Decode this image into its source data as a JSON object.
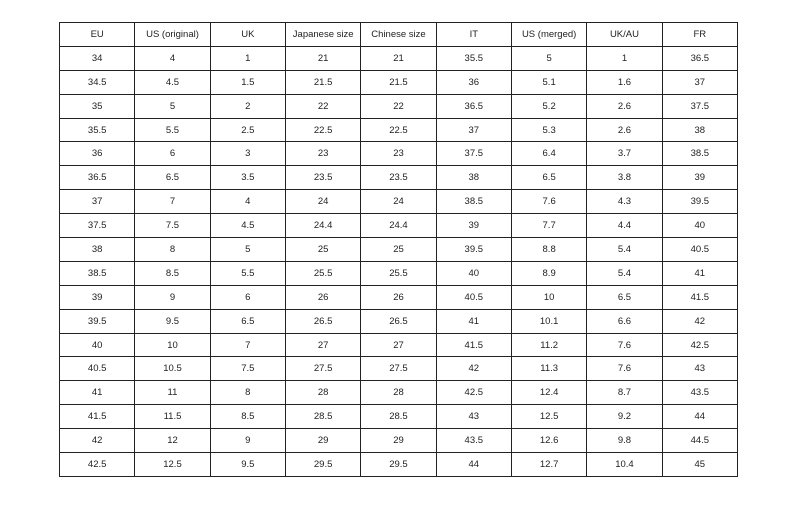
{
  "table": {
    "headers": [
      "EU",
      "US (original)",
      "UK",
      "Japanese size",
      "Chinese size",
      "IT",
      "US (merged)",
      "UK/AU",
      "FR"
    ],
    "rows": [
      [
        "34",
        "4",
        "1",
        "21",
        "21",
        "35.5",
        "5",
        "1",
        "36.5"
      ],
      [
        "34.5",
        "4.5",
        "1.5",
        "21.5",
        "21.5",
        "36",
        "5.1",
        "1.6",
        "37"
      ],
      [
        "35",
        "5",
        "2",
        "22",
        "22",
        "36.5",
        "5.2",
        "2.6",
        "37.5"
      ],
      [
        "35.5",
        "5.5",
        "2.5",
        "22.5",
        "22.5",
        "37",
        "5.3",
        "2.6",
        "38"
      ],
      [
        "36",
        "6",
        "3",
        "23",
        "23",
        "37.5",
        "6.4",
        "3.7",
        "38.5"
      ],
      [
        "36.5",
        "6.5",
        "3.5",
        "23.5",
        "23.5",
        "38",
        "6.5",
        "3.8",
        "39"
      ],
      [
        "37",
        "7",
        "4",
        "24",
        "24",
        "38.5",
        "7.6",
        "4.3",
        "39.5"
      ],
      [
        "37.5",
        "7.5",
        "4.5",
        "24.4",
        "24.4",
        "39",
        "7.7",
        "4.4",
        "40"
      ],
      [
        "38",
        "8",
        "5",
        "25",
        "25",
        "39.5",
        "8.8",
        "5.4",
        "40.5"
      ],
      [
        "38.5",
        "8.5",
        "5.5",
        "25.5",
        "25.5",
        "40",
        "8.9",
        "5.4",
        "41"
      ],
      [
        "39",
        "9",
        "6",
        "26",
        "26",
        "40.5",
        "10",
        "6.5",
        "41.5"
      ],
      [
        "39.5",
        "9.5",
        "6.5",
        "26.5",
        "26.5",
        "41",
        "10.1",
        "6.6",
        "42"
      ],
      [
        "40",
        "10",
        "7",
        "27",
        "27",
        "41.5",
        "11.2",
        "7.6",
        "42.5"
      ],
      [
        "40.5",
        "10.5",
        "7.5",
        "27.5",
        "27.5",
        "42",
        "11.3",
        "7.6",
        "43"
      ],
      [
        "41",
        "11",
        "8",
        "28",
        "28",
        "42.5",
        "12.4",
        "8.7",
        "43.5"
      ],
      [
        "41.5",
        "11.5",
        "8.5",
        "28.5",
        "28.5",
        "43",
        "12.5",
        "9.2",
        "44"
      ],
      [
        "42",
        "12",
        "9",
        "29",
        "29",
        "43.5",
        "12.6",
        "9.8",
        "44.5"
      ],
      [
        "42.5",
        "12.5",
        "9.5",
        "29.5",
        "29.5",
        "44",
        "12.7",
        "10.4",
        "45"
      ]
    ]
  }
}
